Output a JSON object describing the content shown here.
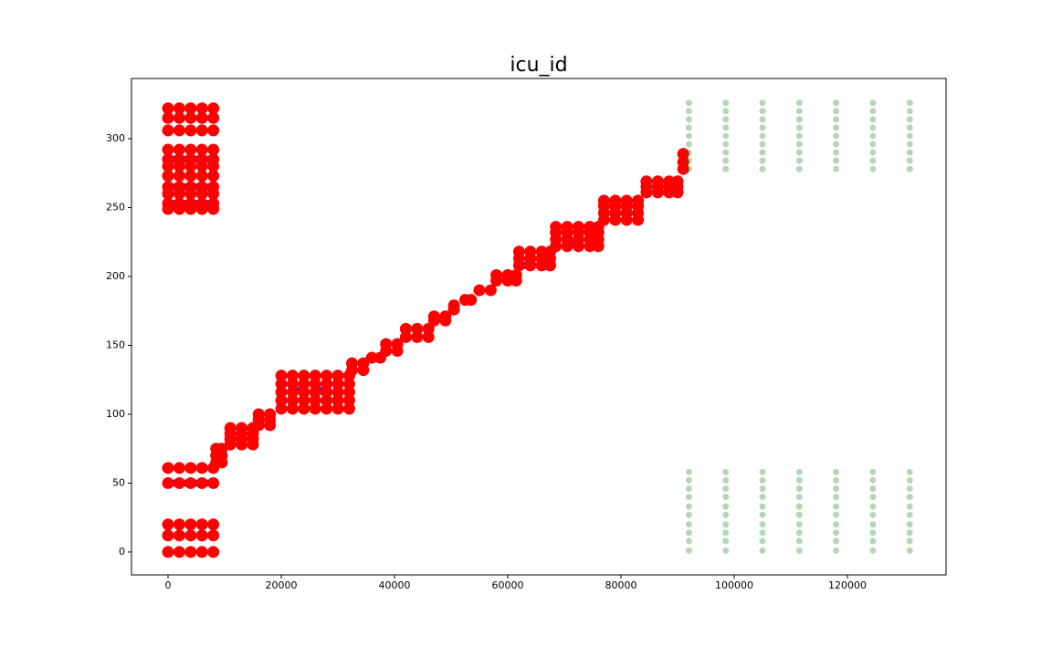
{
  "chart_data": {
    "type": "scatter",
    "title": "icu_id",
    "xlim": [
      -6452,
      137419
    ],
    "ylim": [
      -16.6,
      343.7
    ],
    "xticks": [
      0,
      20000,
      40000,
      60000,
      80000,
      100000,
      120000
    ],
    "yticks": [
      0,
      50,
      100,
      150,
      200,
      250,
      300
    ],
    "series": [
      {
        "color": "#0000ff",
        "x": [
          1000,
          3000,
          5000,
          7000,
          1000,
          3000,
          5000,
          7000,
          1000,
          3000,
          5000,
          7000,
          1000,
          3000,
          5000,
          7000,
          23000,
          27000,
          63000,
          71000
        ],
        "values": [
          50,
          50,
          50,
          50,
          265,
          265,
          265,
          265,
          253,
          253,
          253,
          253,
          285,
          285,
          285,
          285,
          117,
          117,
          208,
          225
        ]
      },
      {
        "color": "#ff0000",
        "x": [
          0,
          2000,
          4000,
          6000,
          8000,
          0,
          2000,
          4000,
          6000,
          8000,
          0,
          2000,
          4000,
          6000,
          8000,
          0,
          2000,
          4000,
          6000,
          8000,
          0,
          2000,
          4000,
          6000,
          8000,
          0,
          2000,
          4000,
          6000,
          8000,
          0,
          2000,
          4000,
          6000,
          8000,
          0,
          2000,
          4000,
          6000,
          8000,
          0,
          2000,
          4000,
          6000,
          8000,
          0,
          2000,
          4000,
          6000,
          8000,
          0,
          2000,
          4000,
          6000,
          8000,
          0,
          2000,
          4000,
          6000,
          8000,
          0,
          2000,
          4000,
          6000,
          8000,
          0,
          2000,
          4000,
          6000,
          8000,
          0,
          2000,
          4000,
          6000,
          8000,
          0,
          2000,
          4000,
          6000,
          8000,
          8500,
          9500,
          8500,
          9500,
          8500,
          9500,
          11000,
          13000,
          15000,
          11000,
          13000,
          15000,
          11000,
          13000,
          15000,
          11000,
          13000,
          15000,
          16000,
          18000,
          16000,
          18000,
          16000,
          18000,
          20000,
          22000,
          24000,
          26000,
          28000,
          30000,
          32000,
          20000,
          22000,
          24000,
          26000,
          28000,
          30000,
          32000,
          20000,
          22000,
          24000,
          26000,
          28000,
          30000,
          32000,
          20000,
          22000,
          24000,
          26000,
          28000,
          30000,
          32000,
          20000,
          22000,
          24000,
          26000,
          28000,
          30000,
          32000,
          32500,
          34500,
          32500,
          34500,
          36000,
          37500,
          38500,
          40500,
          38500,
          40500,
          42000,
          44000,
          46000,
          42000,
          44000,
          46000,
          47000,
          49000,
          47000,
          49000,
          50500,
          50500,
          52500,
          53500,
          55000,
          57000,
          58000,
          60000,
          61500,
          58000,
          60000,
          61500,
          62000,
          64000,
          66000,
          67500,
          62000,
          64000,
          66000,
          67500,
          62000,
          64000,
          66000,
          67500,
          68500,
          70500,
          72500,
          74500,
          76000,
          68500,
          70500,
          72500,
          74500,
          76000,
          68500,
          70500,
          72500,
          74500,
          76000,
          68500,
          70500,
          72500,
          74500,
          76000,
          77000,
          79000,
          81000,
          83000,
          77000,
          79000,
          81000,
          83000,
          77000,
          79000,
          81000,
          83000,
          77000,
          79000,
          81000,
          83000,
          84500,
          86500,
          88500,
          90000,
          84500,
          86500,
          88500,
          90000,
          84500,
          86500,
          88500,
          90000,
          91000,
          91000,
          91000
        ],
        "values": [
          0,
          0,
          0,
          0,
          0,
          12,
          12,
          12,
          12,
          12,
          20,
          20,
          20,
          20,
          20,
          50,
          50,
          50,
          50,
          50,
          61,
          61,
          61,
          61,
          61,
          249,
          249,
          249,
          249,
          249,
          253,
          253,
          253,
          253,
          253,
          260,
          260,
          260,
          260,
          260,
          265,
          265,
          265,
          265,
          265,
          273,
          273,
          273,
          273,
          273,
          280,
          280,
          280,
          280,
          280,
          285,
          285,
          285,
          285,
          285,
          292,
          292,
          292,
          292,
          292,
          306,
          306,
          306,
          306,
          306,
          315,
          315,
          315,
          315,
          315,
          322,
          322,
          322,
          322,
          322,
          65,
          65,
          70,
          70,
          75,
          75,
          78,
          78,
          78,
          82,
          82,
          82,
          86,
          86,
          86,
          90,
          90,
          90,
          92,
          92,
          96,
          96,
          100,
          100,
          104,
          104,
          104,
          104,
          104,
          104,
          104,
          110,
          110,
          110,
          110,
          110,
          110,
          110,
          116,
          116,
          116,
          116,
          116,
          116,
          116,
          122,
          122,
          122,
          122,
          122,
          122,
          122,
          128,
          128,
          128,
          128,
          128,
          128,
          128,
          132,
          132,
          137,
          137,
          141,
          141,
          146,
          146,
          151,
          151,
          156,
          156,
          156,
          162,
          162,
          162,
          168,
          168,
          171,
          171,
          176,
          179,
          183,
          183,
          190,
          190,
          197,
          197,
          197,
          201,
          201,
          201,
          208,
          208,
          208,
          208,
          213,
          213,
          213,
          213,
          218,
          218,
          218,
          218,
          222,
          222,
          222,
          222,
          222,
          227,
          227,
          227,
          227,
          227,
          232,
          232,
          232,
          232,
          232,
          236,
          236,
          236,
          236,
          236,
          241,
          241,
          241,
          241,
          246,
          246,
          246,
          246,
          251,
          251,
          251,
          251,
          255,
          255,
          255,
          255,
          261,
          261,
          261,
          261,
          265,
          265,
          265,
          265,
          269,
          269,
          269,
          269,
          278,
          283,
          289
        ]
      },
      {
        "color": "#008000",
        "x": [
          92000,
          98500,
          105000,
          111500,
          118000,
          124500,
          131000,
          92000,
          98500,
          105000,
          111500,
          118000,
          124500,
          131000,
          92000,
          98500,
          105000,
          111500,
          118000,
          124500,
          131000,
          92000,
          98500,
          105000,
          111500,
          118000,
          124500,
          131000,
          92000,
          98500,
          105000,
          111500,
          118000,
          124500,
          131000,
          92000,
          98500,
          105000,
          111500,
          118000,
          124500,
          131000,
          92000,
          98500,
          105000,
          111500,
          118000,
          124500,
          131000,
          92000,
          98500,
          105000,
          111500,
          118000,
          124500,
          131000,
          92000,
          98500,
          105000,
          111500,
          118000,
          124500,
          131000,
          92000,
          98500,
          105000,
          111500,
          118000,
          124500,
          131000,
          92000,
          98500,
          105000,
          111500,
          118000,
          124500,
          131000,
          92000,
          98500,
          105000,
          111500,
          118000,
          124500,
          131000,
          92000,
          98500,
          105000,
          111500,
          118000,
          124500,
          131000,
          92000,
          98500,
          105000,
          111500,
          118000,
          124500,
          131000,
          92000,
          98500,
          105000,
          111500,
          118000,
          124500,
          131000,
          92000,
          98500,
          105000,
          111500,
          118000,
          124500,
          131000,
          92000,
          98500,
          105000,
          111500,
          118000,
          124500,
          131000,
          92000,
          98500,
          105000,
          111500,
          118000,
          124500,
          131000,
          92000,
          98500,
          105000,
          111500,
          118000,
          124500,
          131000
        ],
        "values": [
          1,
          1,
          1,
          1,
          1,
          1,
          1,
          8,
          8,
          8,
          8,
          8,
          8,
          8,
          14,
          14,
          14,
          14,
          14,
          14,
          14,
          20,
          20,
          20,
          20,
          20,
          20,
          20,
          27,
          27,
          27,
          27,
          27,
          27,
          27,
          33,
          33,
          33,
          33,
          33,
          33,
          33,
          40,
          40,
          40,
          40,
          40,
          40,
          40,
          46,
          46,
          46,
          46,
          46,
          46,
          46,
          52,
          52,
          52,
          52,
          52,
          52,
          52,
          58,
          58,
          58,
          58,
          58,
          58,
          58,
          278,
          278,
          278,
          278,
          278,
          278,
          278,
          284,
          284,
          284,
          284,
          284,
          284,
          284,
          290,
          290,
          290,
          290,
          290,
          290,
          290,
          296,
          296,
          296,
          296,
          296,
          296,
          296,
          302,
          302,
          302,
          302,
          302,
          302,
          302,
          308,
          308,
          308,
          308,
          308,
          308,
          308,
          314,
          314,
          314,
          314,
          314,
          314,
          314,
          320,
          320,
          320,
          320,
          320,
          320,
          320,
          326,
          326,
          326,
          326,
          326,
          326,
          326
        ]
      }
    ]
  }
}
